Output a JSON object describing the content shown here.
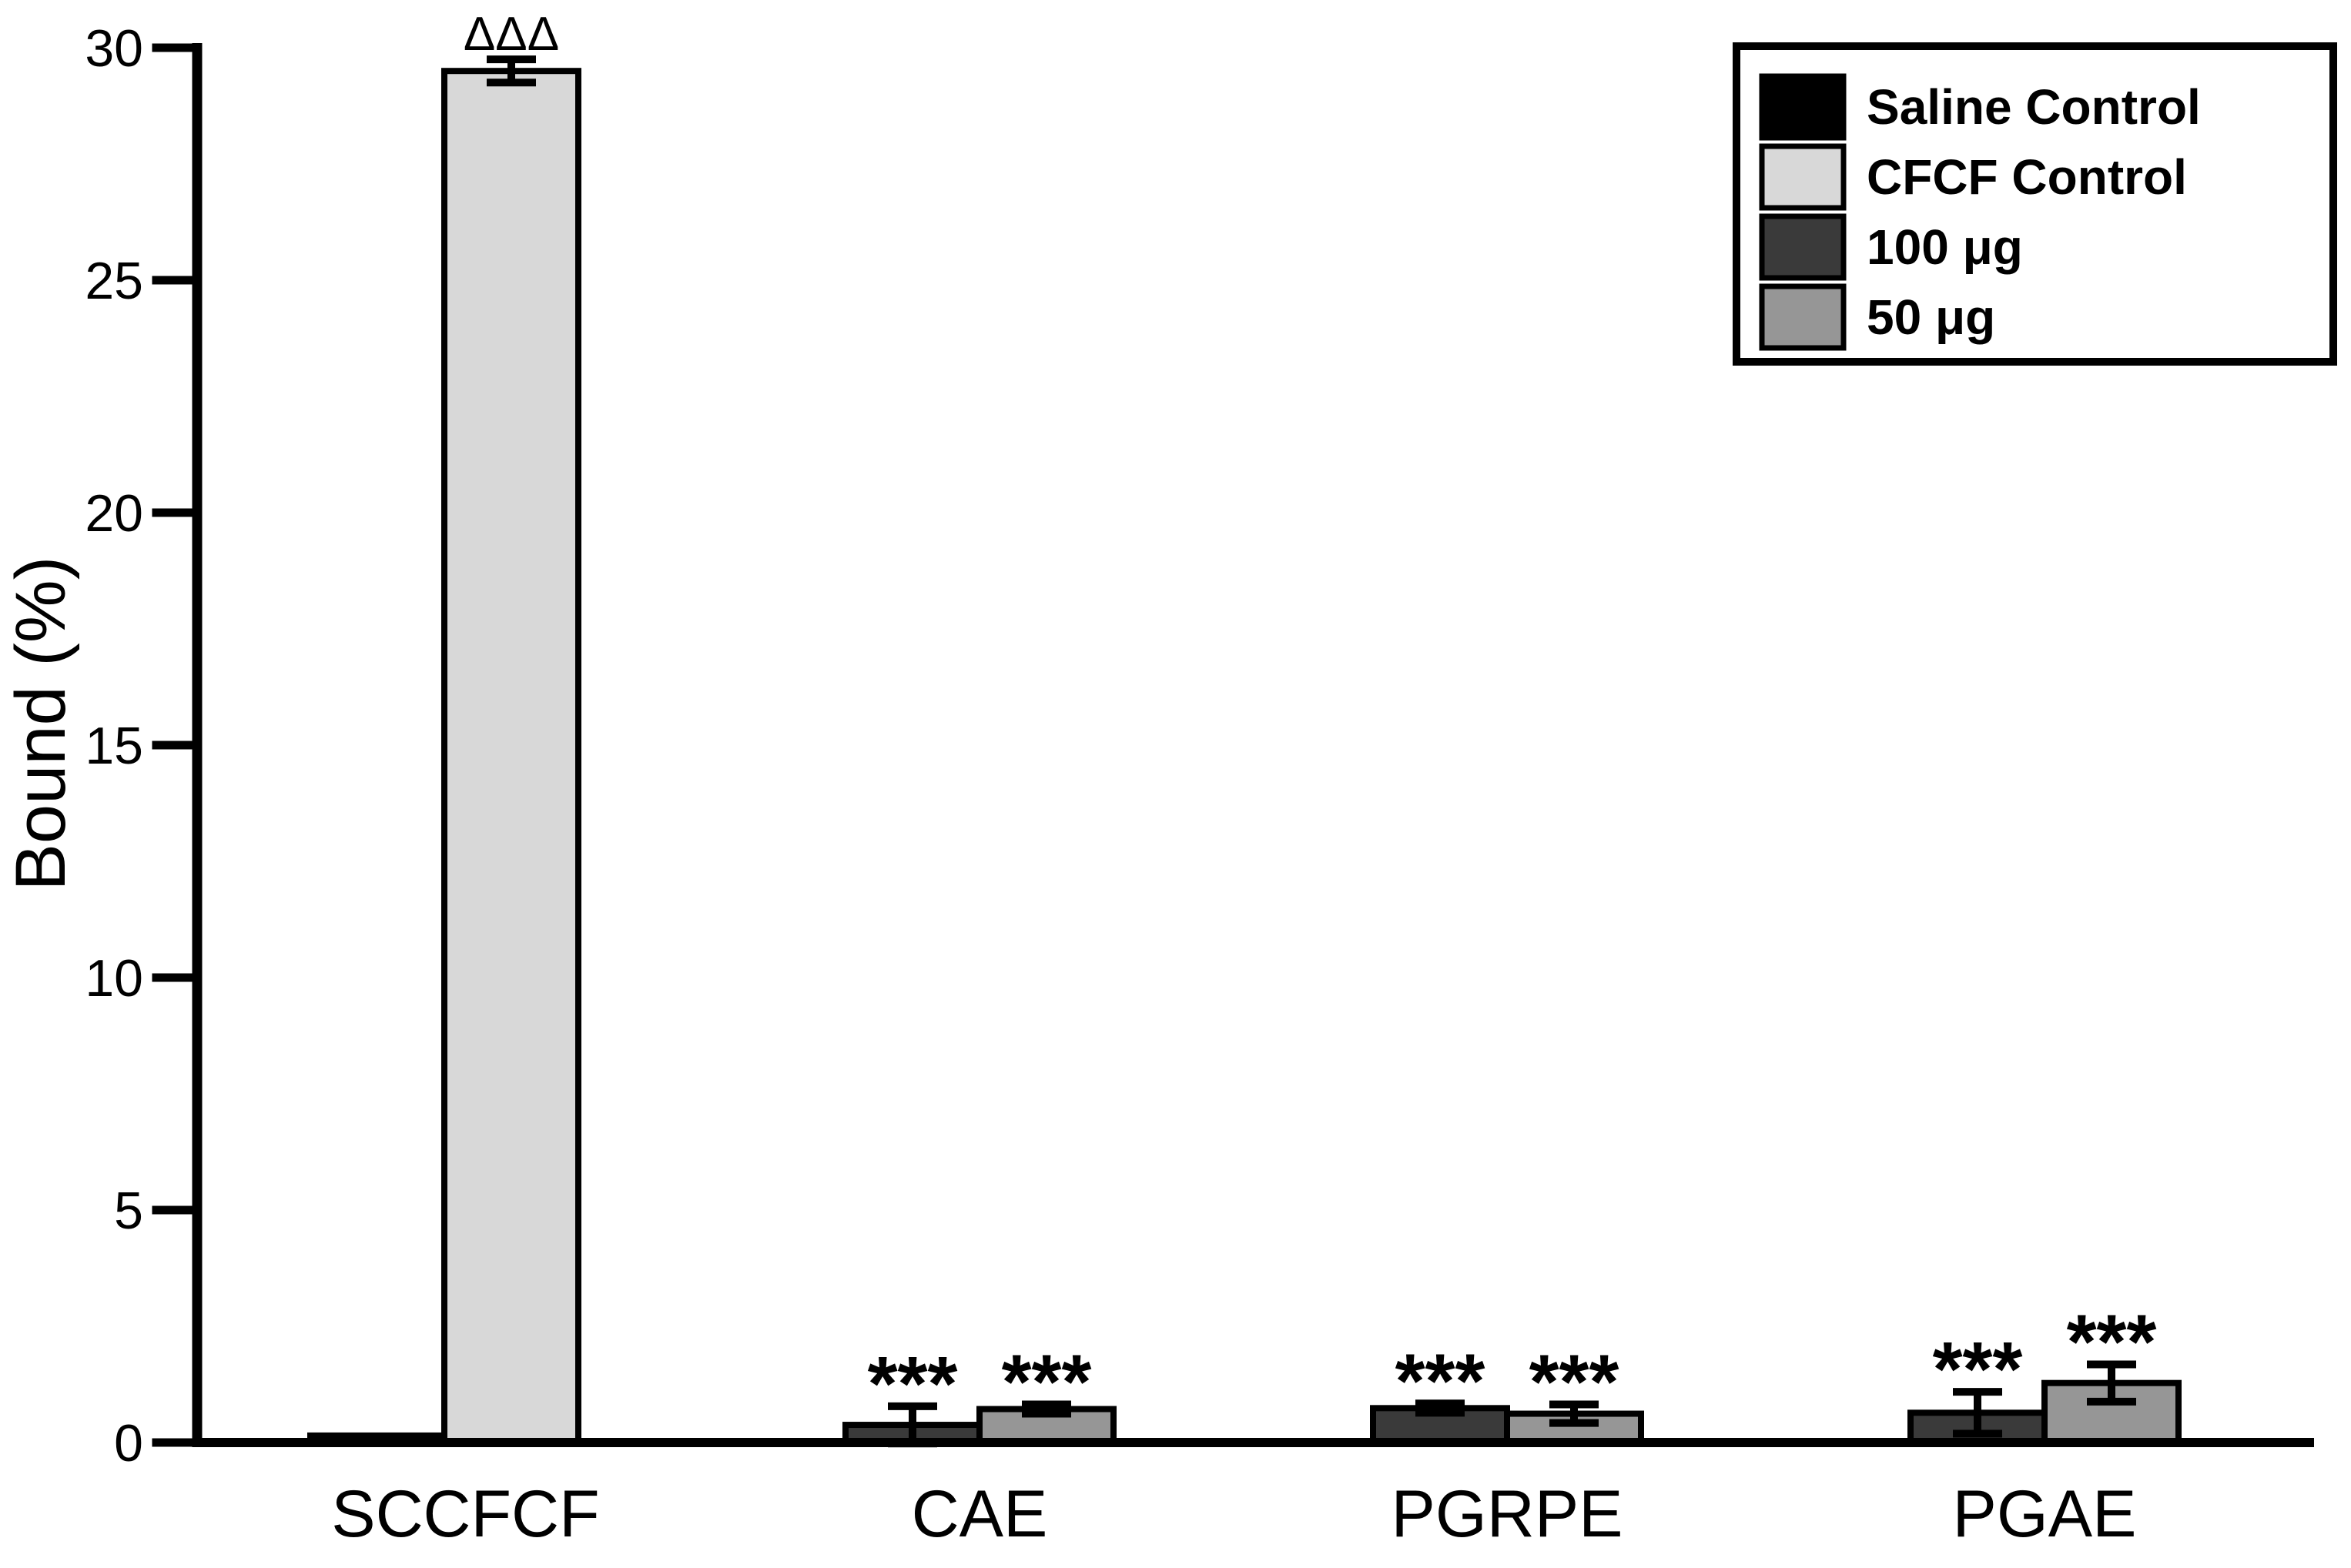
{
  "figure": {
    "background": "#ffffff",
    "axis_color": "#000000"
  },
  "chart_data": {
    "type": "bar",
    "title": "",
    "xlabel": "",
    "ylabel": "Bound (%)",
    "ylim": [
      0,
      30
    ],
    "yticks": [
      0,
      5,
      10,
      15,
      20,
      25,
      30
    ],
    "grid": false,
    "legend": {
      "position": "top-right",
      "entries": [
        {
          "label": "Saline Control",
          "color": "#000000"
        },
        {
          "label": "CFCF Control",
          "color": "#d8d8d8"
        },
        {
          "label": "100 μg",
          "color": "#3a3a3a"
        },
        {
          "label": "50 μg",
          "color": "#969696"
        }
      ]
    },
    "categories": [
      "SC",
      "CFCF",
      "CAE",
      "PGRPE",
      "PGAE"
    ],
    "groups": [
      {
        "category": "SC",
        "bars": [
          {
            "series": "Saline Control",
            "value": 0.15,
            "error": 0,
            "annotation": ""
          }
        ]
      },
      {
        "category": "CFCF",
        "bars": [
          {
            "series": "CFCF Control",
            "value": 29.5,
            "error": 0.25,
            "annotation": "ΔΔΔ"
          }
        ]
      },
      {
        "category": "CAE",
        "bars": [
          {
            "series": "100 μg",
            "value": 0.38,
            "error": 0.4,
            "annotation": "***"
          },
          {
            "series": "50 μg",
            "value": 0.72,
            "error": 0.1,
            "annotation": "***"
          }
        ]
      },
      {
        "category": "PGRPE",
        "bars": [
          {
            "series": "100 μg",
            "value": 0.74,
            "error": 0.1,
            "annotation": "***"
          },
          {
            "series": "50 μg",
            "value": 0.62,
            "error": 0.2,
            "annotation": "***"
          }
        ]
      },
      {
        "category": "PGAE",
        "bars": [
          {
            "series": "100 μg",
            "value": 0.64,
            "error": 0.45,
            "annotation": "***"
          },
          {
            "series": "50 μg",
            "value": 1.28,
            "error": 0.4,
            "annotation": "***"
          }
        ]
      }
    ]
  }
}
